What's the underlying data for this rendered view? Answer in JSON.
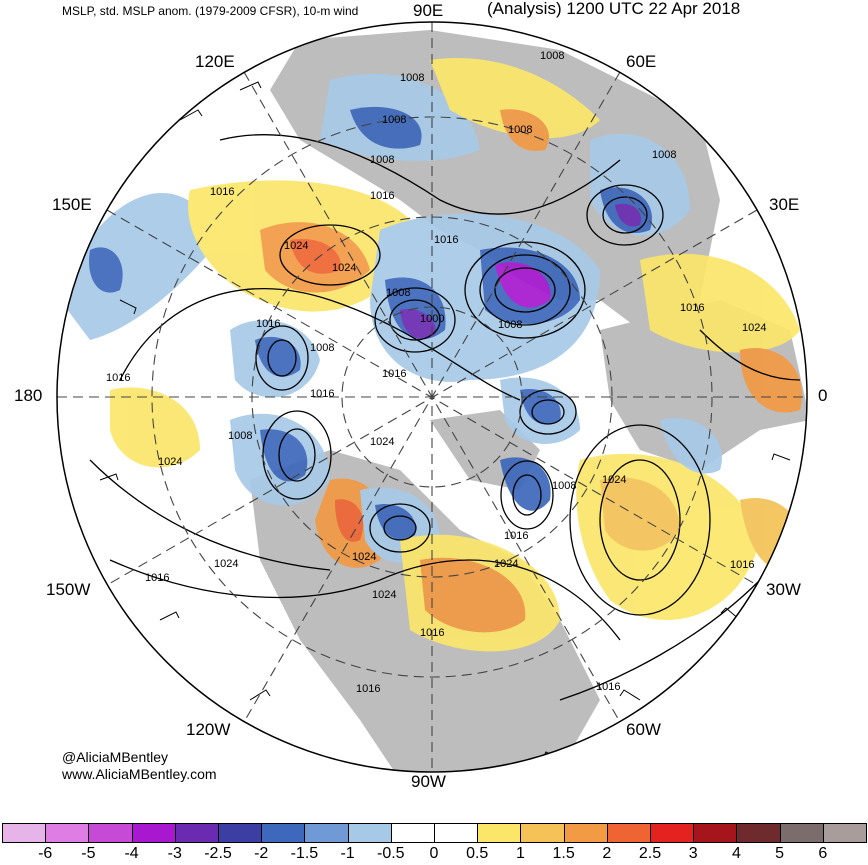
{
  "header": {
    "left": "MSLP, std. MSLP anom. (1979-2009 CFSR), 10-m wind",
    "right": "(Analysis) 1200 UTC 22 Apr 2018"
  },
  "longitude_labels": {
    "n90e": "90E",
    "n120e": "120E",
    "n60e": "60E",
    "n150e": "150E",
    "n30e": "30E",
    "n180": "180",
    "n0": "0",
    "n150w": "150W",
    "n30w": "30W",
    "n120w": "120W",
    "n60w": "60W",
    "n90w": "90W"
  },
  "isobar_labels": [
    "1008",
    "1008",
    "1008",
    "1008",
    "1016",
    "1008",
    "1008",
    "1016",
    "1016",
    "1024",
    "1024",
    "1008",
    "1000",
    "1008",
    "1016",
    "1008",
    "1016",
    "1016",
    "1024",
    "1016",
    "1024",
    "1008",
    "1024",
    "1008",
    "1024",
    "1016",
    "1024",
    "1016",
    "1024",
    "1016",
    "1016",
    "1016",
    "1016",
    "1024",
    "1024",
    "1016"
  ],
  "credit": {
    "handle": "@AliciaMBentley",
    "site": "www.AliciaMBentley.com"
  },
  "colorbar": {
    "ticks": [
      "-6",
      "-5",
      "-4",
      "-3",
      "-2.5",
      "-2",
      "-1.5",
      "-1",
      "-0.5",
      "0",
      "0.5",
      "1",
      "1.5",
      "2",
      "2.5",
      "3",
      "4",
      "5",
      "6"
    ],
    "colors": [
      "#e7b4ea",
      "#de7ee4",
      "#c64ad6",
      "#a718d0",
      "#6a2bb0",
      "#3c3ea4",
      "#3d68bb",
      "#6f9ad5",
      "#a7c9e8",
      "#ffffff",
      "#ffffff",
      "#fbe66a",
      "#f4c256",
      "#f29a44",
      "#ee6533",
      "#e4221f",
      "#a5151b",
      "#6e2a2d",
      "#7b6d6c",
      "#a99d9c"
    ]
  },
  "colors": {
    "land": "#b9b9b9",
    "ocean": "#ffffff",
    "positive_low": "#fbe66a",
    "positive_mid": "#f29a44",
    "positive_high": "#ee6533",
    "negative_low": "#a7c9e8",
    "negative_mid": "#3d68bb",
    "negative_high": "#a718d0"
  }
}
